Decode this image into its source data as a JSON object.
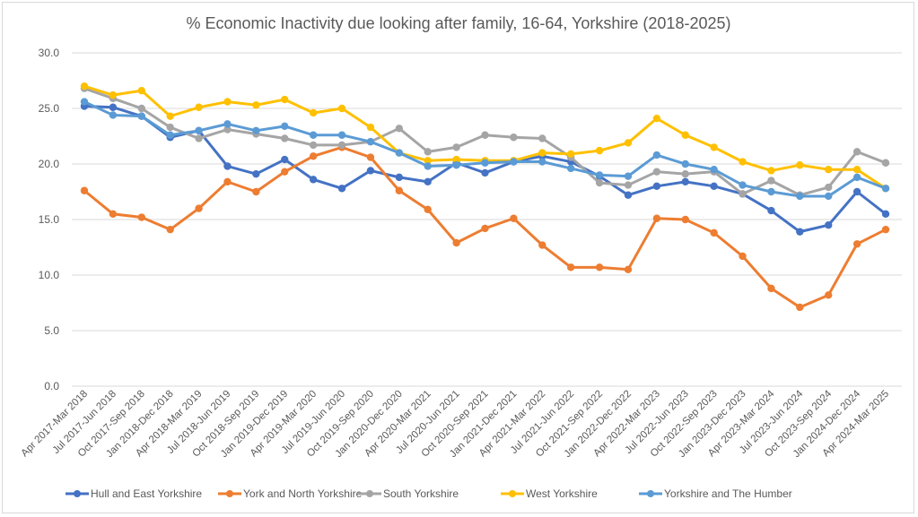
{
  "chart_data": {
    "type": "line",
    "title": "% Economic Inactivity due looking after family, 16-64, Yorkshire (2018-2025)",
    "xlabel": "",
    "ylabel": "",
    "ylim": [
      0,
      30
    ],
    "yticks": [
      "0.0",
      "5.0",
      "10.0",
      "15.0",
      "20.0",
      "25.0",
      "30.0"
    ],
    "grid": true,
    "legend_position": "bottom",
    "categories": [
      "Apr 2017-Mar 2018",
      "Jul 2017-Jun 2018",
      "Oct 2017-Sep 2018",
      "Jan 2018-Dec 2018",
      "Apr 2018-Mar 2019",
      "Jul 2018-Jun 2019",
      "Oct 2018-Sep 2019",
      "Jan 2019-Dec 2019",
      "Apr 2019-Mar 2020",
      "Jul 2019-Jun 2020",
      "Oct 2019-Sep 2020",
      "Jan 2020-Dec 2020",
      "Apr 2020-Mar 2021",
      "Jul 2020-Jun 2021",
      "Oct 2020-Sep 2021",
      "Jan 2021-Dec 2021",
      "Apr 2021-Mar 2022",
      "Jul 2021-Jun 2022",
      "Oct 2021-Sep 2022",
      "Jan 2022-Dec 2022",
      "Apr 2022-Mar 2023",
      "Jul 2022-Jun 2023",
      "Oct 2022-Sep 2023",
      "Jan 2023-Dec 2023",
      "Apr 2023-Mar 2024",
      "Jul 2023-Jun 2024",
      "Oct 2023-Sep 2024",
      "Jan 2024-Dec 2024",
      "Apr 2024-Mar 2025"
    ],
    "series": [
      {
        "name": "Hull and East Yorkshire",
        "color": "#4472c4",
        "values": [
          25.2,
          25.1,
          24.3,
          22.4,
          23.0,
          19.8,
          19.1,
          20.4,
          18.6,
          17.8,
          19.4,
          18.8,
          18.4,
          20.1,
          19.2,
          20.2,
          20.7,
          20.2,
          18.9,
          17.2,
          18.0,
          18.4,
          18.0,
          17.3,
          15.8,
          13.9,
          14.5,
          17.5,
          15.5
        ]
      },
      {
        "name": "York and North Yorkshire",
        "color": "#ed7d31",
        "values": [
          17.6,
          15.5,
          15.2,
          14.1,
          16.0,
          18.4,
          17.5,
          19.3,
          20.7,
          21.5,
          20.6,
          17.6,
          15.9,
          12.9,
          14.2,
          15.1,
          12.7,
          10.7,
          10.7,
          10.5,
          15.1,
          15.0,
          13.8,
          11.7,
          8.8,
          7.1,
          8.2,
          12.8,
          14.1
        ]
      },
      {
        "name": "South Yorkshire",
        "color": "#a5a5a5",
        "values": [
          26.8,
          25.9,
          25.0,
          23.3,
          22.3,
          23.1,
          22.7,
          22.3,
          21.7,
          21.7,
          22.0,
          23.2,
          21.1,
          21.5,
          22.6,
          22.4,
          22.3,
          20.6,
          18.3,
          18.1,
          19.3,
          19.1,
          19.3,
          17.3,
          18.5,
          17.2,
          17.9,
          21.1,
          20.1
        ]
      },
      {
        "name": "West Yorkshire",
        "color": "#ffc000",
        "values": [
          27.0,
          26.2,
          26.6,
          24.3,
          25.1,
          25.6,
          25.3,
          25.8,
          24.6,
          25.0,
          23.3,
          21.0,
          20.3,
          20.4,
          20.3,
          20.3,
          21.0,
          20.9,
          21.2,
          21.9,
          24.1,
          22.6,
          21.5,
          20.2,
          19.4,
          19.9,
          19.5,
          19.5,
          17.8
        ]
      },
      {
        "name": "Yorkshire and The Humber",
        "color": "#5b9bd5",
        "values": [
          25.6,
          24.4,
          24.3,
          22.6,
          23.0,
          23.6,
          23.0,
          23.4,
          22.6,
          22.6,
          22.0,
          21.0,
          19.8,
          19.9,
          20.1,
          20.2,
          20.2,
          19.6,
          19.0,
          18.9,
          20.8,
          20.0,
          19.5,
          18.1,
          17.5,
          17.1,
          17.1,
          18.8,
          17.8
        ]
      }
    ]
  }
}
